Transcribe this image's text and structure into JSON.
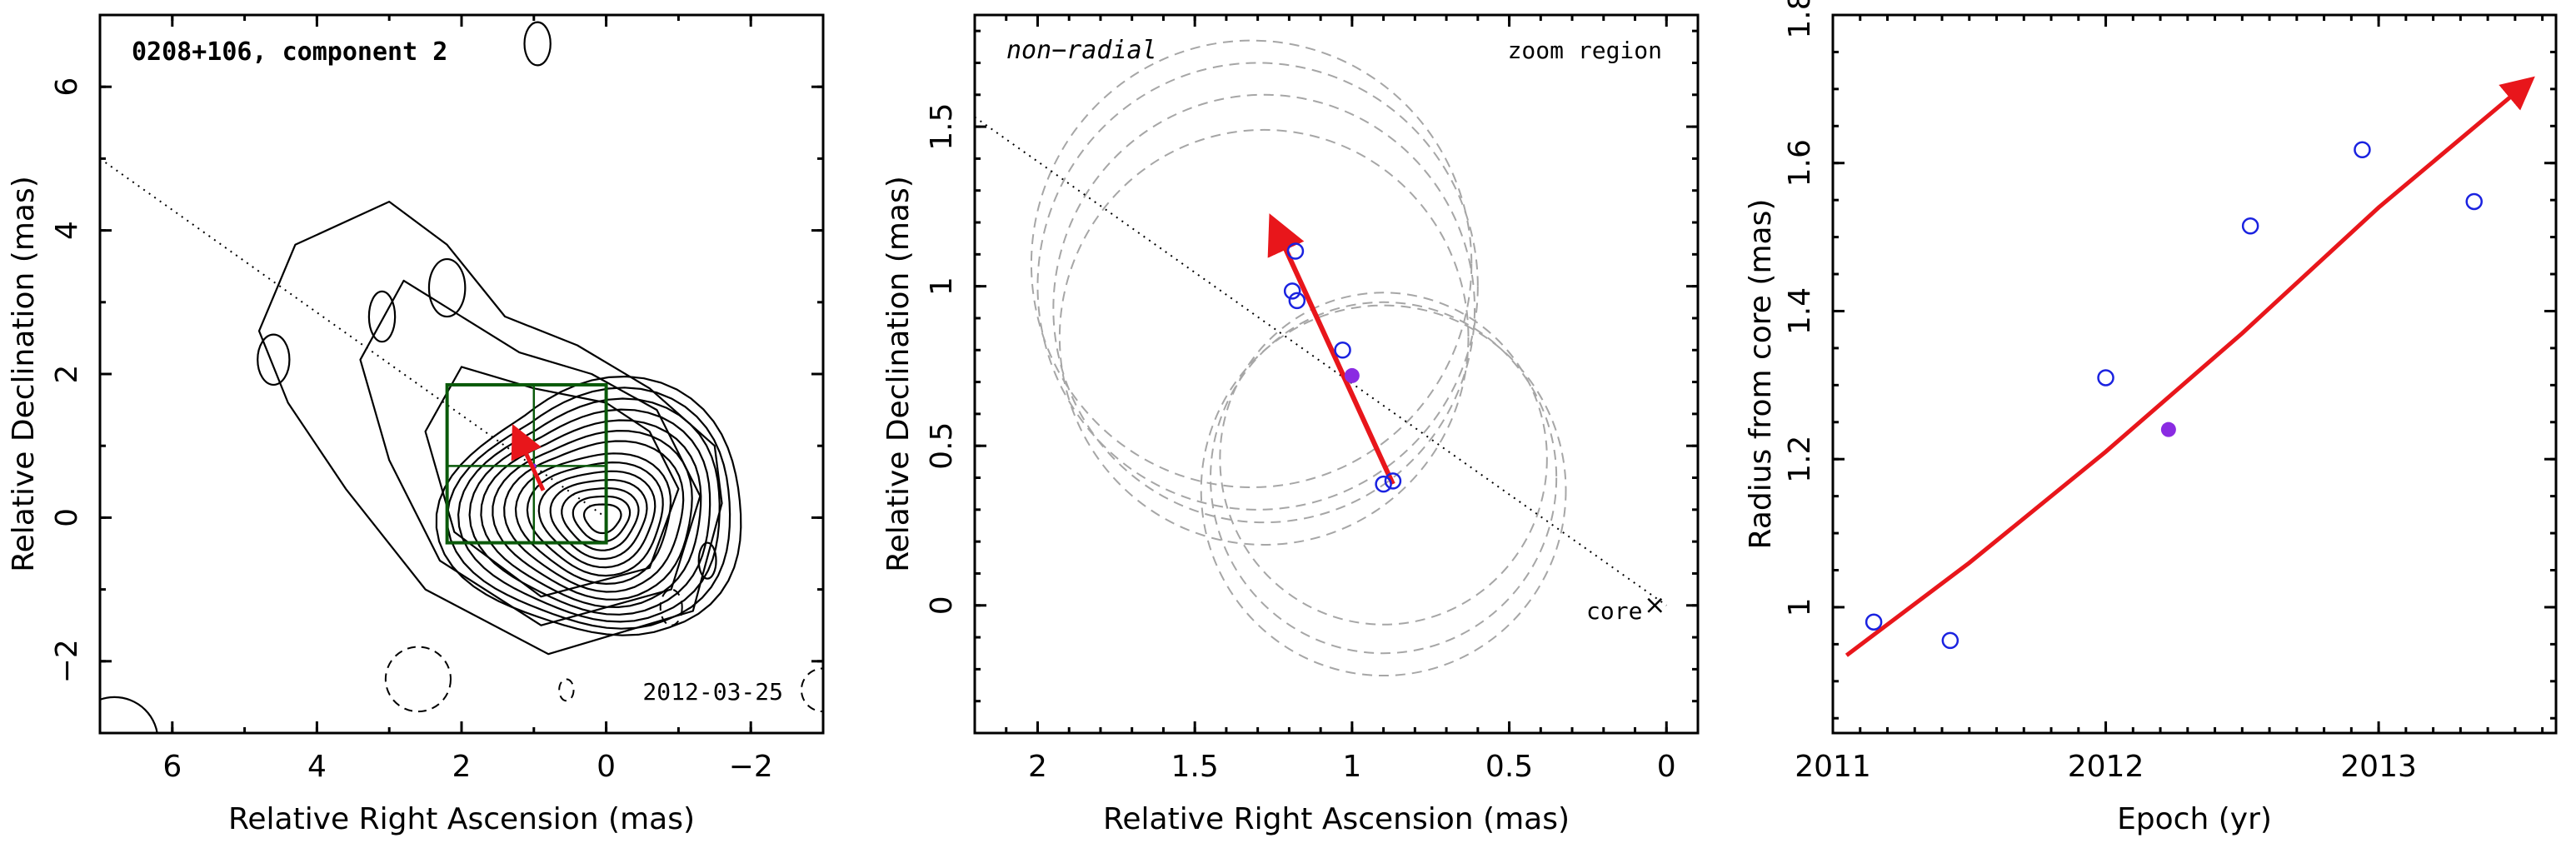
{
  "chart_data": [
    {
      "type": "contour",
      "title": "0208+106, component 2",
      "date_label": "2012-03-25",
      "xlabel": "Relative Right Ascension (mas)",
      "ylabel": "Relative Declination (mas)",
      "xlim": [
        7,
        -3
      ],
      "ylim": [
        -3,
        7
      ],
      "xticks": [
        "6",
        "4",
        "2",
        "0",
        "−2"
      ],
      "xtick_values": [
        6,
        4,
        2,
        0,
        -2
      ],
      "yticks": [
        "−2",
        "0",
        "2",
        "4",
        "6"
      ],
      "ytick_values": [
        -2,
        0,
        2,
        4,
        6
      ],
      "direction_line": {
        "x": [
          7,
          0
        ],
        "y": [
          5.0,
          0
        ]
      },
      "zoom_box": {
        "x": [
          2.2,
          0.0
        ],
        "y": [
          -0.35,
          1.85
        ]
      },
      "motion_vector": {
        "start": [
          0.87,
          0.38
        ],
        "end": [
          1.25,
          1.2
        ]
      },
      "colors": {
        "contour": "#000000",
        "box": "#0a5a0a",
        "vector": "#e8161b",
        "points": "#1a22e0"
      }
    },
    {
      "type": "scatter",
      "title": "",
      "corner_labels": {
        "left": "non−radial",
        "right": "zoom region",
        "core": "core"
      },
      "xlabel": "Relative Right Ascension (mas)",
      "ylabel": "Relative Declination (mas)",
      "xlim": [
        2.2,
        -0.1
      ],
      "ylim": [
        -0.4,
        1.85
      ],
      "xticks": [
        "2",
        "1.5",
        "1",
        "0.5",
        "0"
      ],
      "xtick_values": [
        2,
        1.5,
        1,
        0.5,
        0
      ],
      "yticks": [
        "0",
        "0.5",
        "1",
        "1.5"
      ],
      "ytick_values": [
        0,
        0.5,
        1,
        1.5
      ],
      "series": [
        {
          "name": "",
          "marker": "open-circle",
          "color": "#1a22e0",
          "points": [
            [
              1.18,
              1.11
            ],
            [
              1.19,
              0.985
            ],
            [
              1.175,
              0.955
            ],
            [
              1.03,
              0.8
            ],
            [
              0.9,
              0.38
            ],
            [
              0.87,
              0.39
            ]
          ]
        },
        {
          "name": "",
          "marker": "filled-circle",
          "color": "#8a2be2",
          "points": [
            [
              1.0,
              0.72
            ]
          ]
        }
      ],
      "beam_circles": [
        {
          "cx": 1.3,
          "cy": 1.0,
          "r": 0.7
        },
        {
          "cx": 1.28,
          "cy": 0.93,
          "r": 0.67
        },
        {
          "cx": 1.32,
          "cy": 1.07,
          "r": 0.7
        },
        {
          "cx": 1.28,
          "cy": 0.84,
          "r": 0.65
        },
        {
          "cx": 0.9,
          "cy": 0.4,
          "r": 0.55
        },
        {
          "cx": 0.9,
          "cy": 0.46,
          "r": 0.52
        },
        {
          "cx": 0.9,
          "cy": 0.36,
          "r": 0.58
        }
      ],
      "direction_line": {
        "x": [
          2.2,
          0
        ],
        "y": [
          1.53,
          0
        ]
      },
      "motion_vector": {
        "start": [
          0.87,
          0.38
        ],
        "end": [
          1.25,
          1.2
        ]
      },
      "core_marker": [
        0,
        0
      ]
    },
    {
      "type": "scatter",
      "title": "",
      "xlabel": "Epoch (yr)",
      "ylabel": "Radius from core (mas)",
      "xlim": [
        2011,
        2013.65
      ],
      "ylim": [
        0.83,
        1.8
      ],
      "xticks": [
        "2011",
        "2012",
        "2013"
      ],
      "xtick_values": [
        2011,
        2012,
        2013
      ],
      "yticks": [
        "1",
        "1.2",
        "1.4",
        "1.6",
        "1.8"
      ],
      "ytick_values": [
        1,
        1.2,
        1.4,
        1.6,
        1.8
      ],
      "series": [
        {
          "name": "",
          "marker": "open-circle",
          "color": "#1a22e0",
          "x": [
            2011.15,
            2011.43,
            2012.0,
            2012.53,
            2012.94,
            2013.35
          ],
          "y": [
            0.98,
            0.955,
            1.31,
            1.515,
            1.618,
            1.548
          ]
        },
        {
          "name": "",
          "marker": "filled-circle",
          "color": "#8a2be2",
          "x": [
            2012.23
          ],
          "y": [
            1.24
          ]
        }
      ],
      "fit_curve": {
        "x": [
          2011.05,
          2011.5,
          2012.0,
          2012.5,
          2013.0,
          2013.55
        ],
        "y": [
          0.935,
          1.06,
          1.21,
          1.37,
          1.54,
          1.71
        ]
      }
    }
  ]
}
